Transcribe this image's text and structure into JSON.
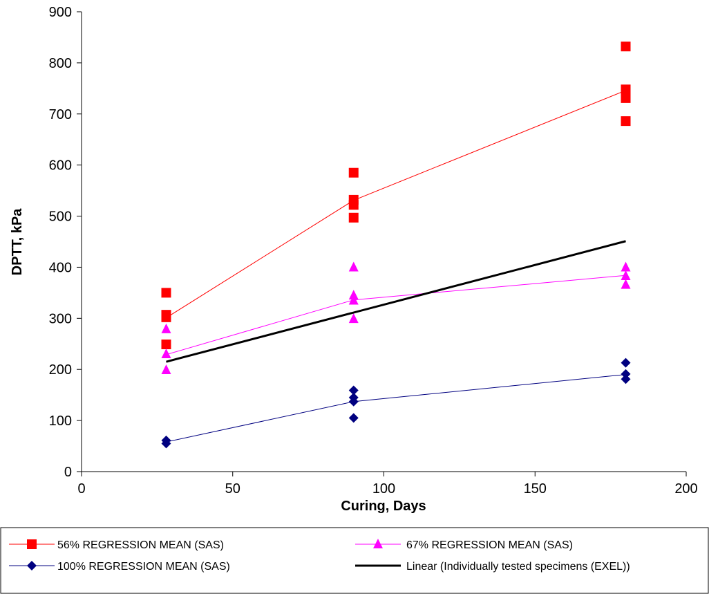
{
  "chart_data": {
    "type": "scatter",
    "title": "",
    "xlabel": "Curing, Days",
    "ylabel": "DPTT, kPa",
    "xlim": [
      0,
      200
    ],
    "ylim": [
      0,
      900
    ],
    "x_ticks": [
      0,
      50,
      100,
      150,
      200
    ],
    "y_ticks": [
      0,
      100,
      200,
      300,
      400,
      500,
      600,
      700,
      800,
      900
    ],
    "grid": false,
    "legend_position": "bottom",
    "series": [
      {
        "name": "56% REGRESSION MEAN (SAS)",
        "color": "#ff0000",
        "marker": "square",
        "points": [
          [
            28,
            350
          ],
          [
            28,
            307
          ],
          [
            28,
            302
          ],
          [
            28,
            249
          ],
          [
            90,
            585
          ],
          [
            90,
            532
          ],
          [
            90,
            522
          ],
          [
            90,
            497
          ],
          [
            180,
            832
          ],
          [
            180,
            748
          ],
          [
            180,
            731
          ],
          [
            180,
            686
          ]
        ],
        "line": [
          [
            28,
            301
          ],
          [
            90,
            531
          ],
          [
            180,
            746
          ]
        ]
      },
      {
        "name": "67% REGRESSION MEAN (SAS)",
        "color": "#ff00ff",
        "marker": "triangle",
        "points": [
          [
            28,
            279
          ],
          [
            28,
            230
          ],
          [
            28,
            199
          ],
          [
            90,
            400
          ],
          [
            90,
            345
          ],
          [
            90,
            335
          ],
          [
            90,
            299
          ],
          [
            180,
            400
          ],
          [
            180,
            383
          ],
          [
            180,
            366
          ]
        ],
        "line": [
          [
            28,
            229
          ],
          [
            90,
            336
          ],
          [
            180,
            384
          ]
        ]
      },
      {
        "name": "100% REGRESSION MEAN (SAS)",
        "color": "#000080",
        "marker": "diamond",
        "points": [
          [
            28,
            61
          ],
          [
            28,
            55
          ],
          [
            90,
            159
          ],
          [
            90,
            145
          ],
          [
            90,
            137
          ],
          [
            90,
            105
          ],
          [
            180,
            213
          ],
          [
            180,
            191
          ],
          [
            180,
            181
          ]
        ],
        "line": [
          [
            28,
            58
          ],
          [
            90,
            137
          ],
          [
            180,
            190
          ]
        ]
      },
      {
        "name": "Linear (Individually tested specimens (EXEL))",
        "color": "#000000",
        "marker": "none",
        "points": [],
        "line": [
          [
            28,
            215
          ],
          [
            180,
            451
          ]
        ]
      }
    ]
  }
}
